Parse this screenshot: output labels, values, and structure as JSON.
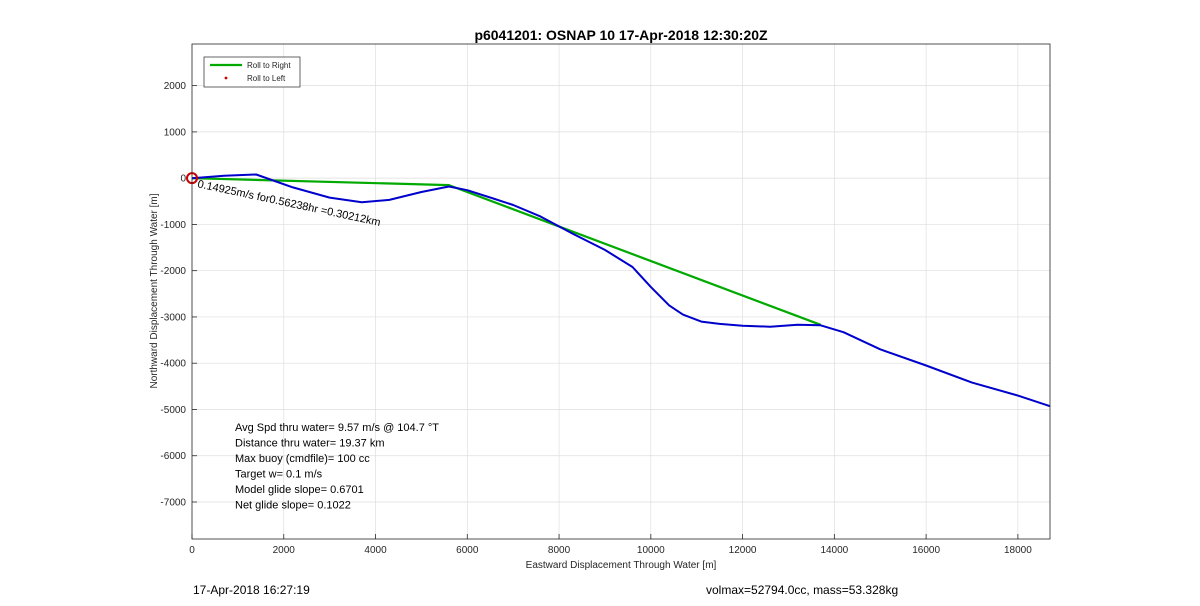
{
  "footer": {
    "timestamp": "17-Apr-2018 16:27:19",
    "summary": "volmax=52794.0cc, mass=53.328kg"
  },
  "chart_data": {
    "type": "line",
    "title": "p6041201: OSNAP 10 17-Apr-2018 12:30:20Z",
    "xlabel": "Eastward Displacement Through Water [m]",
    "ylabel": "Northward Displacement Through Water [m]",
    "xlim": [
      0,
      18700
    ],
    "ylim": [
      -7800,
      2900
    ],
    "xticks": [
      0,
      2000,
      4000,
      6000,
      8000,
      10000,
      12000,
      14000,
      16000,
      18000
    ],
    "yticks": [
      2000,
      1000,
      0,
      -1000,
      -2000,
      -3000,
      -4000,
      -5000,
      -6000,
      -7000
    ],
    "grid": true,
    "legend_location": "top-left",
    "legend": [
      {
        "label": "Roll to Right",
        "color": "#00aa00",
        "style": "line"
      },
      {
        "label": "Roll to Left",
        "color": "#cc0000",
        "style": "dot"
      }
    ],
    "series": [
      {
        "name": "Roll to Right",
        "color": "#00aa00",
        "x": [
          0,
          5600,
          13700
        ],
        "y": [
          0,
          -150,
          -3170
        ]
      },
      {
        "color": "#0000cc",
        "x": [
          0,
          700,
          1400,
          2200,
          3000,
          3700,
          4300,
          5000,
          5600,
          6000,
          6600,
          7000,
          7600,
          8300,
          9000,
          9600,
          10000,
          10400,
          10700,
          11100,
          11500,
          12000,
          12600,
          13200,
          13700,
          14200,
          15000,
          16000,
          17000,
          18000,
          18700
        ],
        "y": [
          0,
          50,
          80,
          -200,
          -420,
          -520,
          -470,
          -300,
          -180,
          -260,
          -450,
          -580,
          -830,
          -1200,
          -1550,
          -1920,
          -2350,
          -2750,
          -2950,
          -3100,
          -3150,
          -3190,
          -3210,
          -3170,
          -3180,
          -3330,
          -3700,
          -4050,
          -4420,
          -4700,
          -4930
        ]
      }
    ],
    "annotations": [
      {
        "text": "0.14925m/s for0.56238hr =0.30212km",
        "x": 0,
        "y": 0,
        "rotation": 12
      },
      {
        "text": "Avg Spd thru water=  9.57 m/s @ 104.7 °T"
      },
      {
        "text": "Distance thru water= 19.37 km"
      },
      {
        "text": "Max buoy (cmdfile)= 100 cc"
      },
      {
        "text": "Target w= 0.1 m/s"
      },
      {
        "text": "Model glide slope= 0.6701"
      },
      {
        "text": "Net glide slope= 0.1022"
      }
    ],
    "start_marker": {
      "x": 0,
      "y": 0,
      "color": "#cc0000"
    }
  }
}
